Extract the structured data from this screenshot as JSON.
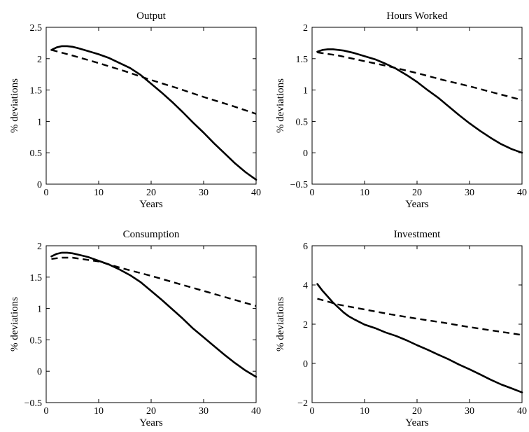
{
  "chart_data": [
    {
      "type": "line",
      "title": "Output",
      "xlabel": "Years",
      "ylabel": "% deviations",
      "xlim": [
        0,
        40
      ],
      "ylim": [
        0,
        2.5
      ],
      "xticks": [
        0,
        10,
        20,
        30,
        40
      ],
      "xtick_labels": [
        "0",
        "10",
        "20",
        "30",
        "40"
      ],
      "yticks": [
        0,
        0.5,
        1,
        1.5,
        2,
        2.5
      ],
      "ytick_labels": [
        "0",
        "0.5",
        "1",
        "1.5",
        "2",
        "2.5"
      ],
      "series": [
        {
          "style": "solid",
          "x": [
            1,
            2,
            3,
            4,
            5,
            6,
            8,
            10,
            12,
            14,
            16,
            18,
            20,
            22,
            24,
            26,
            28,
            30,
            32,
            34,
            36,
            38,
            40
          ],
          "values": [
            2.14,
            2.18,
            2.2,
            2.2,
            2.19,
            2.17,
            2.12,
            2.07,
            2.01,
            1.93,
            1.85,
            1.74,
            1.6,
            1.46,
            1.31,
            1.15,
            0.98,
            0.82,
            0.65,
            0.49,
            0.33,
            0.19,
            0.07
          ]
        },
        {
          "style": "dashed",
          "x": [
            1,
            5,
            10,
            15,
            20,
            25,
            30,
            35,
            40
          ],
          "values": [
            2.14,
            2.05,
            1.93,
            1.8,
            1.66,
            1.53,
            1.39,
            1.26,
            1.12
          ]
        }
      ]
    },
    {
      "type": "line",
      "title": "Hours Worked",
      "xlabel": "Years",
      "ylabel": "% deviations",
      "xlim": [
        0,
        40
      ],
      "ylim": [
        -0.5,
        2
      ],
      "xticks": [
        0,
        10,
        20,
        30,
        40
      ],
      "xtick_labels": [
        "0",
        "10",
        "20",
        "30",
        "40"
      ],
      "yticks": [
        -0.5,
        0,
        0.5,
        1,
        1.5,
        2
      ],
      "ytick_labels": [
        "−0.5",
        "0",
        "0.5",
        "1",
        "1.5",
        "2"
      ],
      "series": [
        {
          "style": "solid",
          "x": [
            1,
            2,
            3,
            4,
            5,
            6,
            8,
            10,
            12,
            14,
            16,
            18,
            20,
            22,
            24,
            26,
            28,
            30,
            32,
            34,
            36,
            38,
            40
          ],
          "values": [
            1.61,
            1.64,
            1.65,
            1.65,
            1.64,
            1.63,
            1.59,
            1.54,
            1.49,
            1.42,
            1.34,
            1.24,
            1.13,
            1.0,
            0.88,
            0.74,
            0.6,
            0.47,
            0.35,
            0.24,
            0.14,
            0.06,
            0.0
          ]
        },
        {
          "style": "dashed",
          "x": [
            1,
            5,
            10,
            15,
            20,
            25,
            30,
            35,
            40
          ],
          "values": [
            1.6,
            1.55,
            1.46,
            1.37,
            1.27,
            1.16,
            1.06,
            0.95,
            0.84
          ]
        }
      ]
    },
    {
      "type": "line",
      "title": "Consumption",
      "xlabel": "Years",
      "ylabel": "% deviations",
      "xlim": [
        0,
        40
      ],
      "ylim": [
        -0.5,
        2
      ],
      "xticks": [
        0,
        10,
        20,
        30,
        40
      ],
      "xtick_labels": [
        "0",
        "10",
        "20",
        "30",
        "40"
      ],
      "yticks": [
        -0.5,
        0,
        0.5,
        1,
        1.5,
        2
      ],
      "ytick_labels": [
        "−0.5",
        "0",
        "0.5",
        "1",
        "1.5",
        "2"
      ],
      "series": [
        {
          "style": "solid",
          "x": [
            1,
            2,
            3,
            4,
            5,
            6,
            8,
            10,
            12,
            14,
            16,
            18,
            20,
            22,
            24,
            26,
            28,
            30,
            32,
            34,
            36,
            38,
            40
          ],
          "values": [
            1.83,
            1.87,
            1.89,
            1.89,
            1.88,
            1.86,
            1.82,
            1.76,
            1.7,
            1.62,
            1.53,
            1.42,
            1.28,
            1.14,
            0.99,
            0.84,
            0.68,
            0.54,
            0.4,
            0.26,
            0.13,
            0.01,
            -0.09
          ]
        },
        {
          "style": "dashed",
          "x": [
            1,
            3,
            5,
            10,
            15,
            20,
            25,
            30,
            35,
            40
          ],
          "values": [
            1.79,
            1.81,
            1.81,
            1.75,
            1.63,
            1.52,
            1.4,
            1.28,
            1.16,
            1.04
          ]
        }
      ]
    },
    {
      "type": "line",
      "title": "Investment",
      "xlabel": "Years",
      "ylabel": "% deviations",
      "xlim": [
        0,
        40
      ],
      "ylim": [
        -2,
        6
      ],
      "xticks": [
        0,
        10,
        20,
        30,
        40
      ],
      "xtick_labels": [
        "0",
        "10",
        "20",
        "30",
        "40"
      ],
      "yticks": [
        -2,
        0,
        2,
        4,
        6
      ],
      "ytick_labels": [
        "−2",
        "0",
        "2",
        "4",
        "6"
      ],
      "series": [
        {
          "style": "solid",
          "x": [
            1,
            2,
            3,
            4,
            5,
            6,
            7,
            8,
            10,
            12,
            14,
            16,
            18,
            20,
            22,
            24,
            26,
            28,
            30,
            32,
            34,
            36,
            38,
            40
          ],
          "values": [
            4.05,
            3.7,
            3.4,
            3.1,
            2.85,
            2.6,
            2.4,
            2.25,
            1.98,
            1.8,
            1.58,
            1.4,
            1.18,
            0.93,
            0.7,
            0.45,
            0.21,
            -0.06,
            -0.3,
            -0.56,
            -0.83,
            -1.07,
            -1.27,
            -1.48
          ]
        },
        {
          "style": "dashed",
          "x": [
            1,
            5,
            10,
            15,
            20,
            25,
            30,
            35,
            40
          ],
          "values": [
            3.3,
            3.0,
            2.75,
            2.5,
            2.28,
            2.08,
            1.85,
            1.65,
            1.45
          ]
        }
      ]
    }
  ]
}
